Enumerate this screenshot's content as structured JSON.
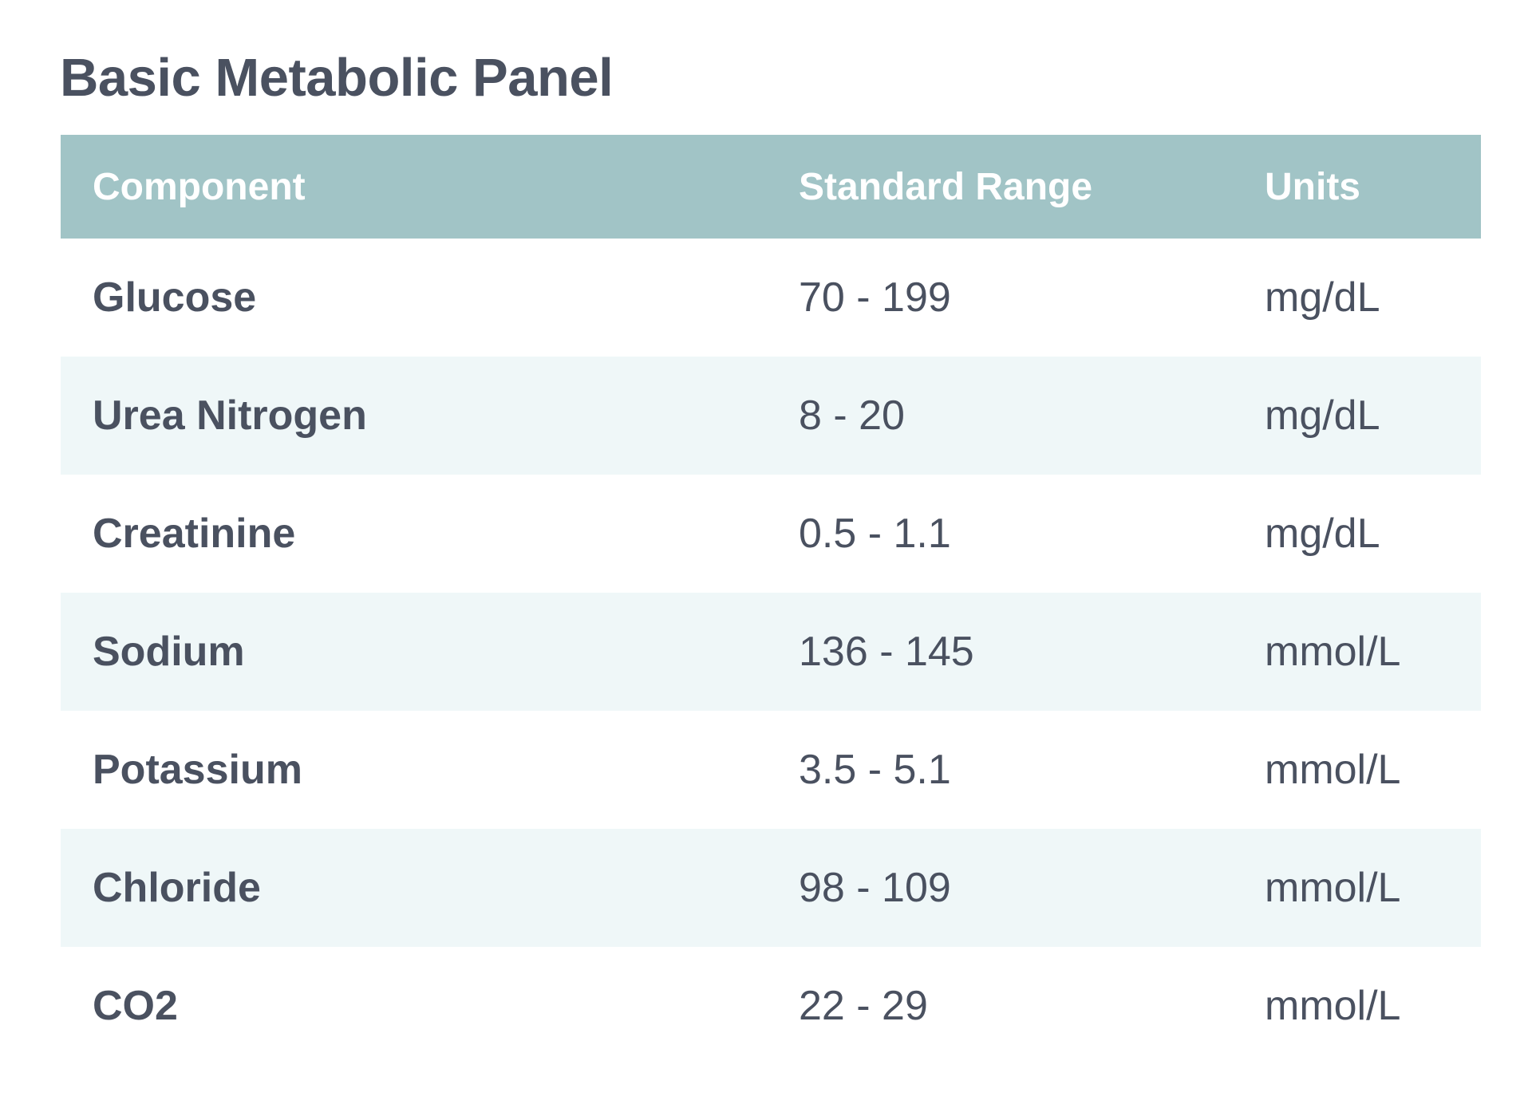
{
  "title": "Basic Metabolic Panel",
  "columns": [
    "Component",
    "Standard Range",
    "Units"
  ],
  "rows": [
    {
      "component": "Glucose",
      "range": "70 - 199",
      "units": "mg/dL"
    },
    {
      "component": "Urea Nitrogen",
      "range": "8 - 20",
      "units": "mg/dL"
    },
    {
      "component": "Creatinine",
      "range": "0.5 - 1.1",
      "units": "mg/dL"
    },
    {
      "component": "Sodium",
      "range": "136 - 145",
      "units": "mmol/L"
    },
    {
      "component": "Potassium",
      "range": "3.5 - 5.1",
      "units": "mmol/L"
    },
    {
      "component": "Chloride",
      "range": "98 - 109",
      "units": "mmol/L"
    },
    {
      "component": "CO2",
      "range": "22 - 29",
      "units": "mmol/L"
    }
  ],
  "colors": {
    "header_bg": "#a1c4c6",
    "stripe_bg": "#eff7f8",
    "text": "#4a5160"
  }
}
